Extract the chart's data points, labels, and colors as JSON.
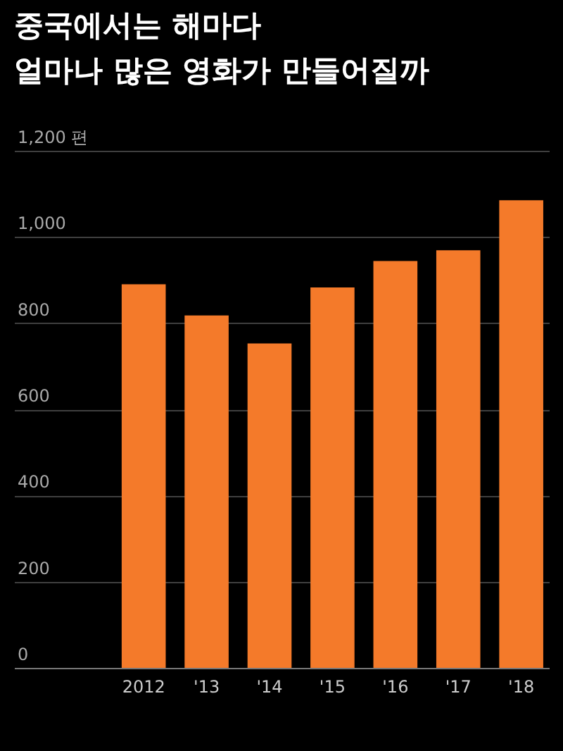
{
  "chart_data": {
    "type": "bar",
    "title": [
      "중국에서는 해마다",
      "얼마나 많은 영화가 만들어질까"
    ],
    "categories": [
      "2012",
      "'13",
      "'14",
      "'15",
      "'16",
      "'17",
      "'18"
    ],
    "values": [
      890,
      818,
      753,
      883,
      944,
      969,
      1085
    ],
    "color": "#f47a2a",
    "ylim": [
      0,
      1200
    ],
    "yticks": [
      0,
      200,
      400,
      600,
      800,
      {
        "value": 1000,
        "label": "1,000"
      },
      {
        "value": 1200,
        "label": "1,200 편"
      }
    ],
    "grid": "y"
  }
}
